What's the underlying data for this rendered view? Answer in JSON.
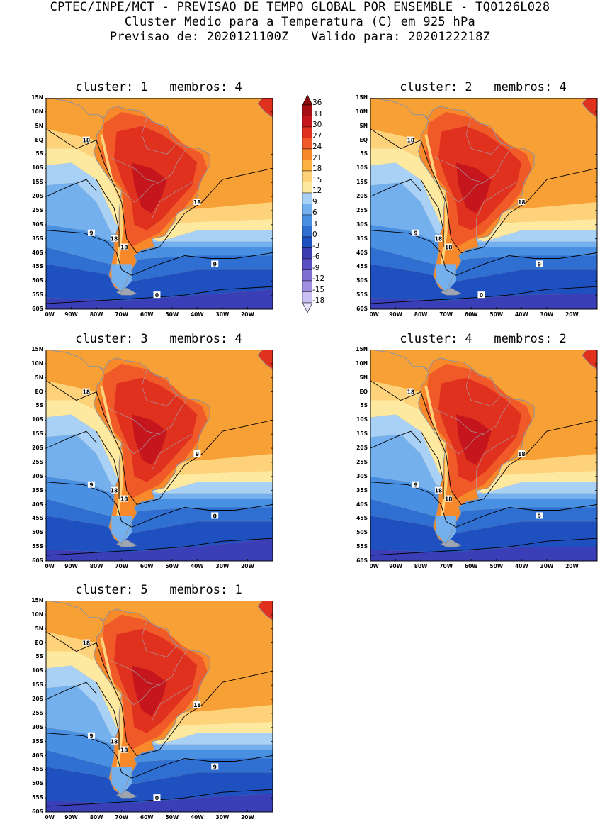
{
  "header": {
    "line1": "CPTEC/INPE/MCT - PREVISAO DE TEMPO GLOBAL POR ENSEMBLE - TQ0126L028",
    "line2": "Cluster Medio para a Temperatura (C) em 925 hPa",
    "line3": "Previsao de: 2020121100Z   Valido para: 2020122218Z"
  },
  "axes": {
    "lat_ticks": [
      "15N",
      "10N",
      "5N",
      "EQ",
      "5S",
      "10S",
      "15S",
      "20S",
      "25S",
      "30S",
      "35S",
      "40S",
      "45S",
      "50S",
      "55S",
      "60S"
    ],
    "lon_ticks": [
      "100W",
      "90W",
      "80W",
      "70W",
      "60W",
      "50W",
      "40W",
      "30W",
      "20W"
    ]
  },
  "colorbar": {
    "levels": [
      "36",
      "33",
      "30",
      "27",
      "24",
      "21",
      "18",
      "15",
      "12",
      "9",
      "6",
      "3",
      "0",
      "-3",
      "-6",
      "-9",
      "-12",
      "-15",
      "-18"
    ],
    "colors": [
      "#a50f15",
      "#c4161c",
      "#e0301e",
      "#f05a28",
      "#f7892a",
      "#fbb040",
      "#fdd27a",
      "#fee9a0",
      "#a9d0f5",
      "#74b0ee",
      "#4a90e2",
      "#2e6fd1",
      "#1e50c0",
      "#3b3fb0",
      "#5a4fc2",
      "#7f6fd4",
      "#a08fe0",
      "#c9bff0"
    ]
  },
  "panels": [
    {
      "title": "cluster: 1   membros: 4",
      "contours": [
        "18",
        "18",
        "18",
        "18",
        "9",
        "9",
        "0"
      ]
    },
    {
      "title": "cluster: 2   membros: 4",
      "contours": [
        "18",
        "18",
        "18",
        "18",
        "9",
        "9",
        "0"
      ]
    },
    {
      "title": "cluster: 3   membros: 4",
      "contours": [
        "18",
        "18",
        "18",
        "9",
        "9",
        "0"
      ]
    },
    {
      "title": "cluster: 4   membros: 2",
      "contours": [
        "18",
        "18",
        "18",
        "18",
        "9",
        "9"
      ]
    },
    {
      "title": "cluster: 5   membros: 1",
      "contours": [
        "18",
        "18",
        "18",
        "18",
        "9",
        "9",
        "0"
      ]
    }
  ]
}
